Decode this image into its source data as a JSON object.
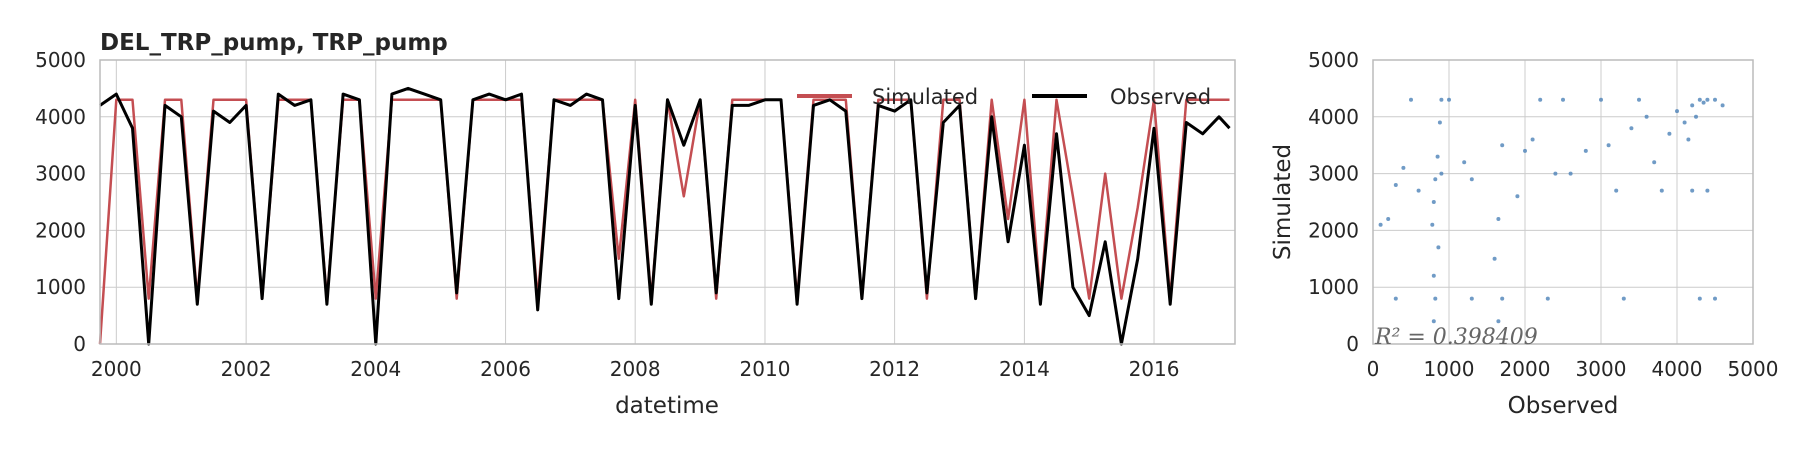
{
  "colors": {
    "simulated": "#c44e52",
    "observed": "#000000",
    "scatter": "#4c82b8",
    "grid": "#cccccc",
    "frame": "#bbbbbb"
  },
  "chart_data": [
    {
      "type": "line",
      "title": "DEL_TRP_pump, TRP_pump",
      "xlabel": "datetime",
      "ylabel": "",
      "xlim": [
        "1999-10-01",
        "2017-04-01"
      ],
      "ylim": [
        0,
        5000
      ],
      "x_tick_labels": [
        "2000",
        "2002",
        "2004",
        "2006",
        "2008",
        "2010",
        "2012",
        "2014",
        "2016"
      ],
      "y_tick_labels": [
        "0",
        "1000",
        "2000",
        "3000",
        "4000",
        "5000"
      ],
      "grid": true,
      "legend_position": "top-right",
      "series": [
        {
          "name": "Simulated",
          "color": "#c44e52",
          "x": [
            "1999-10",
            "2000-01",
            "2000-04",
            "2000-07",
            "2000-10",
            "2001-01",
            "2001-04",
            "2001-07",
            "2001-10",
            "2002-01",
            "2002-04",
            "2002-07",
            "2002-10",
            "2003-01",
            "2003-04",
            "2003-07",
            "2003-10",
            "2004-01",
            "2004-04",
            "2004-07",
            "2004-10",
            "2005-01",
            "2005-04",
            "2005-07",
            "2005-10",
            "2006-01",
            "2006-04",
            "2006-07",
            "2006-10",
            "2007-01",
            "2007-04",
            "2007-07",
            "2007-10",
            "2008-01",
            "2008-04",
            "2008-07",
            "2008-10",
            "2009-01",
            "2009-04",
            "2009-07",
            "2009-10",
            "2010-01",
            "2010-04",
            "2010-07",
            "2010-10",
            "2011-01",
            "2011-04",
            "2011-07",
            "2011-10",
            "2012-01",
            "2012-04",
            "2012-07",
            "2012-10",
            "2013-01",
            "2013-04",
            "2013-07",
            "2013-10",
            "2014-01",
            "2014-04",
            "2014-07",
            "2014-10",
            "2015-01",
            "2015-04",
            "2015-07",
            "2015-10",
            "2016-01",
            "2016-04",
            "2016-07",
            "2016-10",
            "2017-01",
            "2017-03"
          ],
          "values": [
            0,
            4300,
            4300,
            800,
            4300,
            4300,
            800,
            4300,
            4300,
            4300,
            800,
            4300,
            4300,
            4300,
            800,
            4300,
            4300,
            800,
            4300,
            4300,
            4300,
            4300,
            800,
            4300,
            4300,
            4300,
            4300,
            800,
            4300,
            4300,
            4300,
            4300,
            1500,
            4300,
            800,
            4300,
            2600,
            4300,
            800,
            4300,
            4300,
            4300,
            4300,
            800,
            4300,
            4300,
            4300,
            800,
            4300,
            4300,
            4300,
            800,
            4300,
            4300,
            800,
            4300,
            2200,
            4300,
            800,
            4300,
            2600,
            800,
            3000,
            800,
            2400,
            4300,
            800,
            4300,
            4300,
            4300,
            4300
          ]
        },
        {
          "name": "Observed",
          "color": "#000000",
          "x": [
            "1999-10",
            "2000-01",
            "2000-04",
            "2000-07",
            "2000-10",
            "2001-01",
            "2001-04",
            "2001-07",
            "2001-10",
            "2002-01",
            "2002-04",
            "2002-07",
            "2002-10",
            "2003-01",
            "2003-04",
            "2003-07",
            "2003-10",
            "2004-01",
            "2004-04",
            "2004-07",
            "2004-10",
            "2005-01",
            "2005-04",
            "2005-07",
            "2005-10",
            "2006-01",
            "2006-04",
            "2006-07",
            "2006-10",
            "2007-01",
            "2007-04",
            "2007-07",
            "2007-10",
            "2008-01",
            "2008-04",
            "2008-07",
            "2008-10",
            "2009-01",
            "2009-04",
            "2009-07",
            "2009-10",
            "2010-01",
            "2010-04",
            "2010-07",
            "2010-10",
            "2011-01",
            "2011-04",
            "2011-07",
            "2011-10",
            "2012-01",
            "2012-04",
            "2012-07",
            "2012-10",
            "2013-01",
            "2013-04",
            "2013-07",
            "2013-10",
            "2014-01",
            "2014-04",
            "2014-07",
            "2014-10",
            "2015-01",
            "2015-04",
            "2015-07",
            "2015-10",
            "2016-01",
            "2016-04",
            "2016-07",
            "2016-10",
            "2017-01",
            "2017-03"
          ],
          "values": [
            4200,
            4400,
            3800,
            0,
            4200,
            4000,
            700,
            4100,
            3900,
            4200,
            800,
            4400,
            4200,
            4300,
            700,
            4400,
            4300,
            0,
            4400,
            4500,
            4400,
            4300,
            900,
            4300,
            4400,
            4300,
            4400,
            600,
            4300,
            4200,
            4400,
            4300,
            800,
            4200,
            700,
            4300,
            3500,
            4300,
            900,
            4200,
            4200,
            4300,
            4300,
            700,
            4200,
            4300,
            4100,
            800,
            4200,
            4100,
            4300,
            900,
            3900,
            4200,
            800,
            4000,
            1800,
            3500,
            700,
            3700,
            1000,
            500,
            1800,
            0,
            1500,
            3800,
            700,
            3900,
            3700,
            4000,
            3800
          ]
        }
      ]
    },
    {
      "type": "scatter",
      "xlabel": "Observed",
      "ylabel": "Simulated",
      "xlim": [
        0,
        5000
      ],
      "ylim": [
        0,
        5000
      ],
      "x_tick_labels": [
        "0",
        "1000",
        "2000",
        "3000",
        "4000",
        "5000"
      ],
      "y_tick_labels": [
        "0",
        "1000",
        "2000",
        "3000",
        "4000",
        "5000"
      ],
      "grid": true,
      "annotation": "R² = 0.398409",
      "color": "#4c82b8",
      "points": [
        [
          4300,
          4300
        ],
        [
          4200,
          4200
        ],
        [
          4250,
          4000
        ],
        [
          4100,
          3900
        ],
        [
          4350,
          4250
        ],
        [
          4000,
          4100
        ],
        [
          3900,
          3700
        ],
        [
          4400,
          4300
        ],
        [
          4150,
          3600
        ],
        [
          3500,
          4300
        ],
        [
          3400,
          3800
        ],
        [
          3000,
          4300
        ],
        [
          2800,
          3400
        ],
        [
          2600,
          3000
        ],
        [
          3700,
          3200
        ],
        [
          3200,
          2700
        ],
        [
          2500,
          4300
        ],
        [
          2200,
          4300
        ],
        [
          2000,
          3400
        ],
        [
          1900,
          2600
        ],
        [
          1700,
          3500
        ],
        [
          1650,
          2200
        ],
        [
          1600,
          1500
        ],
        [
          1700,
          800
        ],
        [
          1650,
          400
        ],
        [
          900,
          4300
        ],
        [
          880,
          3900
        ],
        [
          850,
          3300
        ],
        [
          820,
          2900
        ],
        [
          800,
          2500
        ],
        [
          780,
          2100
        ],
        [
          860,
          1700
        ],
        [
          800,
          1200
        ],
        [
          820,
          800
        ],
        [
          800,
          400
        ],
        [
          900,
          3000
        ],
        [
          300,
          2800
        ],
        [
          200,
          2200
        ],
        [
          100,
          2100
        ],
        [
          400,
          3100
        ],
        [
          500,
          4300
        ],
        [
          600,
          2700
        ],
        [
          1000,
          4300
        ],
        [
          1200,
          3200
        ],
        [
          1300,
          2900
        ],
        [
          3800,
          2700
        ],
        [
          4200,
          2700
        ],
        [
          4400,
          2700
        ],
        [
          2100,
          3600
        ],
        [
          2400,
          3000
        ],
        [
          3100,
          3500
        ],
        [
          3600,
          4000
        ],
        [
          4500,
          4300
        ],
        [
          4600,
          4200
        ],
        [
          300,
          800
        ],
        [
          1300,
          800
        ],
        [
          2300,
          800
        ],
        [
          3300,
          800
        ],
        [
          4300,
          800
        ],
        [
          4500,
          800
        ]
      ]
    }
  ]
}
